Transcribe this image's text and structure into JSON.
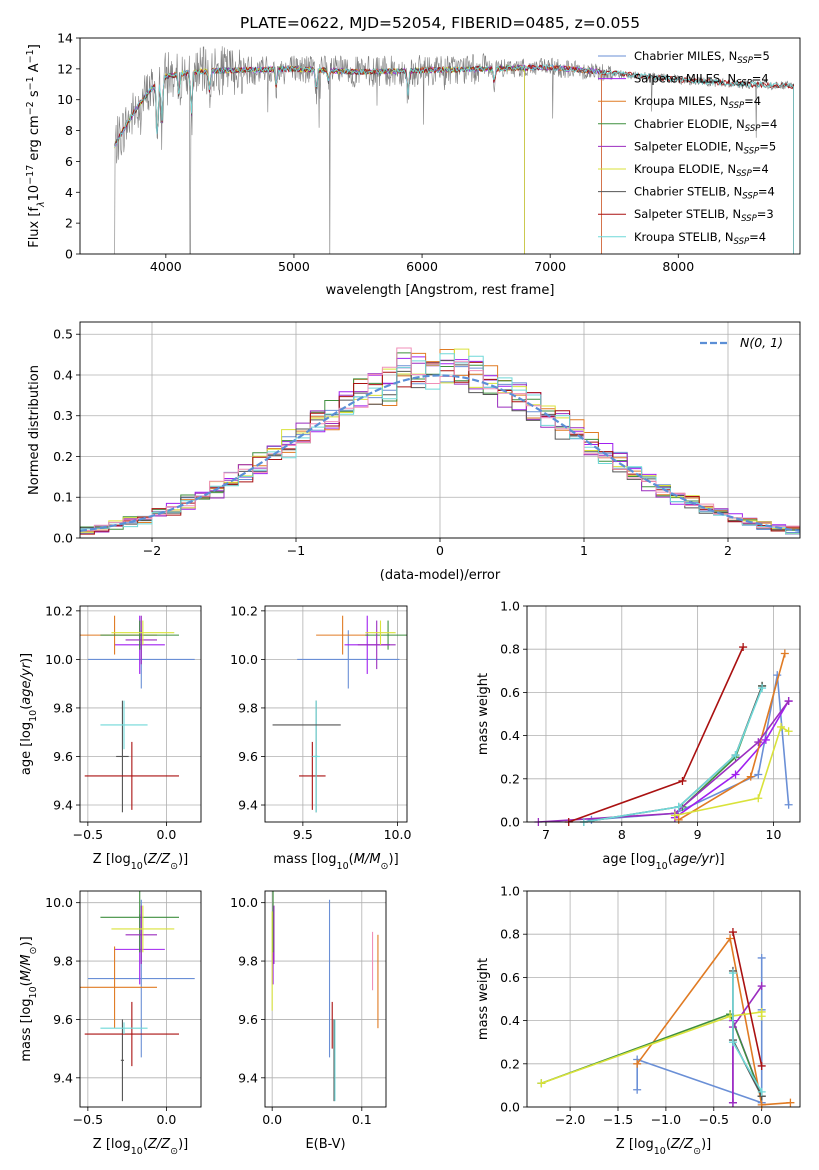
{
  "title": "PLATE=0622, MJD=52054, FIBERID=0485, z=0.055",
  "colors": {
    "Chabrier MILES": "#6a8fd6",
    "Salpeter MILES": "#a020f0",
    "Kroupa MILES": "#e07b24",
    "Chabrier ELODIE": "#3f8f3f",
    "Salpeter ELODIE": "#9b2dbf",
    "Kroupa ELODIE": "#d9e23a",
    "Chabrier STELIB": "#555555",
    "Salpeter STELIB": "#aa1111",
    "Kroupa STELIB": "#6fd8d8",
    "gaussian": "#5b8fd6",
    "hist_extra": "#f08fb8"
  },
  "chart_data": [
    {
      "id": "spectrum",
      "type": "line",
      "xlabel": "wavelength [Angstrom, rest frame]",
      "ylabel_parts": [
        "Flux [f",
        "λ",
        "10",
        "−17",
        " erg cm",
        "−2",
        " s",
        "−1",
        " A",
        "−1",
        "]"
      ],
      "xlim": [
        3330,
        8950
      ],
      "ylim": [
        0,
        14
      ],
      "xticks": [
        4000,
        5000,
        6000,
        7000,
        8000
      ],
      "yticks": [
        0,
        2,
        4,
        6,
        8,
        10,
        12,
        14
      ],
      "grid": false,
      "legend_position": "top-right",
      "legend": [
        {
          "label": "Chabrier MILES, N",
          "sub": "SSP",
          "suffix": "=5"
        },
        {
          "label": "Salpeter MILES, N",
          "sub": "SSP",
          "suffix": "=4"
        },
        {
          "label": "Kroupa MILES, N",
          "sub": "SSP",
          "suffix": "=4"
        },
        {
          "label": "Chabrier ELODIE, N",
          "sub": "SSP",
          "suffix": "=4"
        },
        {
          "label": "Salpeter ELODIE, N",
          "sub": "SSP",
          "suffix": "=5"
        },
        {
          "label": "Kroupa ELODIE, N",
          "sub": "SSP",
          "suffix": "=4"
        },
        {
          "label": "Chabrier STELIB, N",
          "sub": "SSP",
          "suffix": "=4"
        },
        {
          "label": "Salpeter STELIB, N",
          "sub": "SSP",
          "suffix": "=3"
        },
        {
          "label": "Kroupa STELIB, N",
          "sub": "SSP",
          "suffix": "=4"
        }
      ],
      "continuum": [
        [
          3600,
          7.0
        ],
        [
          3700,
          8.5
        ],
        [
          3800,
          9.8
        ],
        [
          3900,
          10.8
        ],
        [
          4000,
          11.5
        ],
        [
          4200,
          11.8
        ],
        [
          4500,
          11.9
        ],
        [
          5000,
          12.0
        ],
        [
          5500,
          11.8
        ],
        [
          6000,
          11.9
        ],
        [
          6500,
          12.0
        ],
        [
          7000,
          12.1
        ],
        [
          7400,
          11.8
        ],
        [
          8000,
          11.3
        ],
        [
          8500,
          11.0
        ],
        [
          8900,
          10.9
        ]
      ],
      "model_ends": {
        "Chabrier MILES": 7400,
        "Salpeter MILES": 7400,
        "Kroupa MILES": 7400,
        "Chabrier ELODIE": 6800,
        "Salpeter ELODIE": 6800,
        "Kroupa ELODIE": 6800,
        "Chabrier STELIB": 8900,
        "Salpeter STELIB": 8900,
        "Kroupa STELIB": 8900
      }
    },
    {
      "id": "residuals",
      "type": "histogram",
      "xlabel": "(data-model)/error",
      "ylabel": "Normed distribution",
      "xlim": [
        -2.5,
        2.5
      ],
      "ylim": [
        0,
        0.53
      ],
      "xticks": [
        -2,
        -1,
        0,
        1,
        2
      ],
      "yticks": [
        0.0,
        0.1,
        0.2,
        0.3,
        0.4,
        0.5
      ],
      "grid": true,
      "legend_position": "top-right",
      "gaussian_label": "N(0, 1)",
      "bin_width": 0.1
    },
    {
      "id": "age_vs_Z",
      "type": "errorbar",
      "xlabel": "Z [log10(Z/Z⊙)]",
      "ylabel": "age  [log10(age/yr)]",
      "xlim": [
        -0.55,
        0.22
      ],
      "ylim": [
        9.33,
        10.22
      ],
      "xticks": [
        -0.5,
        0.0
      ],
      "yticks": [
        9.4,
        9.6,
        9.8,
        10.0,
        10.2
      ],
      "grid": true,
      "points": [
        {
          "model": "Chabrier MILES",
          "x": -0.16,
          "xerr": 0.34,
          "y": 10.0,
          "yerr": 0.12
        },
        {
          "model": "Salpeter MILES",
          "x": -0.17,
          "xerr": 0.16,
          "y": 10.06,
          "yerr": 0.12
        },
        {
          "model": "Kroupa MILES",
          "x": -0.33,
          "xerr": 0.27,
          "y": 10.1,
          "yerr": 0.08
        },
        {
          "model": "Chabrier ELODIE",
          "x": -0.17,
          "xerr": 0.25,
          "y": 10.1,
          "yerr": 0.06
        },
        {
          "model": "Salpeter ELODIE",
          "x": -0.16,
          "xerr": 0.1,
          "y": 10.08,
          "yerr": 0.1
        },
        {
          "model": "Kroupa ELODIE",
          "x": -0.15,
          "xerr": 0.2,
          "y": 10.11,
          "yerr": 0.05
        },
        {
          "model": "Chabrier STELIB",
          "x": -0.28,
          "xerr": 0.04,
          "y": 9.6,
          "yerr": 0.23
        },
        {
          "model": "Salpeter STELIB",
          "x": -0.22,
          "xerr": 0.3,
          "y": 9.52,
          "yerr": 0.14
        },
        {
          "model": "Kroupa STELIB",
          "x": -0.27,
          "xerr": 0.15,
          "y": 9.73,
          "yerr": 0.1
        }
      ]
    },
    {
      "id": "age_vs_mass",
      "type": "errorbar",
      "xlabel": "mass [log10(M/M⊙)]",
      "ylabel": "",
      "xlim": [
        9.3,
        10.05
      ],
      "ylim": [
        9.33,
        10.22
      ],
      "xticks": [
        9.5,
        10.0
      ],
      "yticks": [
        9.4,
        9.6,
        9.8,
        10.0,
        10.2
      ],
      "grid": true,
      "points": [
        {
          "model": "Chabrier MILES",
          "x": 9.74,
          "xerr": 0.27,
          "y": 10.0,
          "yerr": 0.12
        },
        {
          "model": "Salpeter MILES",
          "x": 9.84,
          "xerr": 0.12,
          "y": 10.06,
          "yerr": 0.12
        },
        {
          "model": "Kroupa MILES",
          "x": 9.71,
          "xerr": 0.14,
          "y": 10.1,
          "yerr": 0.08
        },
        {
          "model": "Chabrier ELODIE",
          "x": 9.95,
          "xerr": 0.12,
          "y": 10.1,
          "yerr": 0.06
        },
        {
          "model": "Salpeter ELODIE",
          "x": 9.89,
          "xerr": 0.1,
          "y": 10.06,
          "yerr": 0.1
        },
        {
          "model": "Kroupa ELODIE",
          "x": 9.91,
          "xerr": 0.08,
          "y": 10.11,
          "yerr": 0.05
        },
        {
          "model": "Chabrier STELIB",
          "x": 9.57,
          "xerr": 0.01,
          "y": 9.6,
          "yerr": 0.23
        },
        {
          "model": "Salpeter STELIB",
          "x": 9.55,
          "xerr": 0.07,
          "y": 9.52,
          "yerr": 0.14
        },
        {
          "model": "Kroupa STELIB",
          "x": 9.57,
          "xerr": 0.02,
          "y": 9.6,
          "yerr": 0.23
        },
        {
          "model": "Chabrier STELIB",
          "x": 9.52,
          "xerr": 0.18,
          "y": 9.73,
          "yerr": 0.0
        }
      ]
    },
    {
      "id": "weight_vs_age",
      "type": "line",
      "xlabel": "age  [log10(age/yr)]",
      "ylabel": "mass weight",
      "xlim": [
        6.75,
        10.35
      ],
      "ylim": [
        0,
        1.0
      ],
      "xticks": [
        7,
        8,
        9,
        10
      ],
      "yticks": [
        0.0,
        0.2,
        0.4,
        0.6,
        0.8,
        1.0
      ],
      "grid": true,
      "series": [
        {
          "model": "Chabrier MILES",
          "x": [
            7.6,
            8.7,
            9.8,
            10.05,
            10.2
          ],
          "y": [
            0.01,
            0.04,
            0.22,
            0.68,
            0.08
          ]
        },
        {
          "model": "Salpeter MILES",
          "x": [
            8.7,
            9.5,
            9.9,
            10.2
          ],
          "y": [
            0.02,
            0.22,
            0.38,
            0.56
          ]
        },
        {
          "model": "Kroupa MILES",
          "x": [
            8.75,
            9.7,
            10.15
          ],
          "y": [
            0.01,
            0.21,
            0.78
          ]
        },
        {
          "model": "Chabrier ELODIE",
          "x": [
            8.8,
            9.5,
            9.85
          ],
          "y": [
            0.07,
            0.3,
            0.63
          ]
        },
        {
          "model": "Salpeter ELODIE",
          "x": [
            6.9,
            8.7,
            9.8,
            10.2
          ],
          "y": [
            0.0,
            0.04,
            0.37,
            0.56
          ]
        },
        {
          "model": "Kroupa ELODIE",
          "x": [
            8.7,
            9.8,
            10.1,
            10.2
          ],
          "y": [
            0.03,
            0.11,
            0.44,
            0.42
          ]
        },
        {
          "model": "Chabrier STELIB",
          "x": [
            7.5,
            8.75,
            9.5,
            9.85
          ],
          "y": [
            0.0,
            0.07,
            0.31,
            0.63
          ]
        },
        {
          "model": "Salpeter STELIB",
          "x": [
            7.3,
            8.8,
            9.6
          ],
          "y": [
            0.0,
            0.19,
            0.81
          ]
        },
        {
          "model": "Kroupa STELIB",
          "x": [
            7.5,
            8.75,
            9.5,
            9.85
          ],
          "y": [
            0.0,
            0.07,
            0.31,
            0.62
          ]
        }
      ]
    },
    {
      "id": "mass_vs_Z",
      "type": "errorbar",
      "xlabel": "Z [log10(Z/Z⊙)]",
      "ylabel": "mass [log10(M/M⊙)]",
      "xlim": [
        -0.55,
        0.22
      ],
      "ylim": [
        9.3,
        10.04
      ],
      "xticks": [
        -0.5,
        0.0
      ],
      "yticks": [
        9.4,
        9.6,
        9.8,
        10.0
      ],
      "grid": true,
      "points": [
        {
          "model": "Chabrier MILES",
          "x": -0.16,
          "xerr": 0.34,
          "y": 9.74,
          "yerr": 0.27
        },
        {
          "model": "Salpeter MILES",
          "x": -0.17,
          "xerr": 0.16,
          "y": 9.84,
          "yerr": 0.12
        },
        {
          "model": "Kroupa MILES",
          "x": -0.33,
          "xerr": 0.27,
          "y": 9.71,
          "yerr": 0.14
        },
        {
          "model": "Chabrier ELODIE",
          "x": -0.17,
          "xerr": 0.25,
          "y": 9.95,
          "yerr": 0.12
        },
        {
          "model": "Salpeter ELODIE",
          "x": -0.16,
          "xerr": 0.1,
          "y": 9.89,
          "yerr": 0.1
        },
        {
          "model": "Kroupa ELODIE",
          "x": -0.15,
          "xerr": 0.2,
          "y": 9.91,
          "yerr": 0.08
        },
        {
          "model": "Chabrier STELIB",
          "x": -0.28,
          "xerr": 0.01,
          "y": 9.46,
          "yerr": 0.14
        },
        {
          "model": "Salpeter STELIB",
          "x": -0.22,
          "xerr": 0.3,
          "y": 9.55,
          "yerr": 0.11
        },
        {
          "model": "Kroupa STELIB",
          "x": -0.27,
          "xerr": 0.15,
          "y": 9.57,
          "yerr": 0.02
        }
      ]
    },
    {
      "id": "mass_vs_ebv",
      "type": "errorbar",
      "xlabel": "E(B-V)",
      "ylabel": "",
      "xlim": [
        -0.008,
        0.127
      ],
      "ylim": [
        9.3,
        10.04
      ],
      "xticks": [
        0.0,
        0.1
      ],
      "yticks": [
        9.4,
        9.6,
        9.8,
        10.0
      ],
      "grid": true,
      "points": [
        {
          "model": "Chabrier MILES",
          "x": 0.064,
          "y": 9.74,
          "yerr": 0.27
        },
        {
          "model": "Salpeter MILES",
          "x": 0.001,
          "y": 9.84,
          "yerr": 0.12
        },
        {
          "model": "Kroupa MILES",
          "x": 0.118,
          "y": 9.73,
          "yerr": 0.16
        },
        {
          "model": "Chabrier ELODIE",
          "x": 0.001,
          "y": 9.95,
          "yerr": 0.12
        },
        {
          "model": "Salpeter ELODIE",
          "x": 0.002,
          "y": 9.89,
          "yerr": 0.1
        },
        {
          "model": "Kroupa ELODIE",
          "x": 0.0,
          "y": 9.8,
          "yerr": 0.17
        },
        {
          "model": "Chabrier STELIB",
          "x": 0.069,
          "y": 9.46,
          "yerr": 0.14
        },
        {
          "model": "Salpeter STELIB",
          "x": 0.067,
          "y": 9.58,
          "yerr": 0.08
        },
        {
          "model": "Kroupa STELIB",
          "x": 0.07,
          "y": 9.46,
          "yerr": 0.14
        },
        {
          "model": "hist_extra",
          "x": 0.112,
          "y": 9.8,
          "yerr": 0.1
        }
      ]
    },
    {
      "id": "weight_vs_Z",
      "type": "line",
      "xlabel": "Z [log10(Z/Z⊙)]",
      "ylabel": "mass weight",
      "xlim": [
        -2.45,
        0.4
      ],
      "ylim": [
        0,
        1.0
      ],
      "xticks": [
        -2.0,
        -1.5,
        -1.0,
        -0.5,
        0.0
      ],
      "yticks": [
        0.0,
        0.2,
        0.4,
        0.6,
        0.8,
        1.0
      ],
      "grid": true,
      "series": [
        {
          "model": "Chabrier MILES",
          "x": [
            -1.3,
            -1.3,
            0.0,
            0.0,
            0.0
          ],
          "y": [
            0.08,
            0.22,
            0.02,
            0.45,
            0.69
          ]
        },
        {
          "model": "Salpeter MILES",
          "x": [
            -0.3,
            -0.3,
            0.0
          ],
          "y": [
            0.02,
            0.4,
            0.05
          ]
        },
        {
          "model": "Kroupa MILES",
          "x": [
            -1.3,
            -0.33,
            0.0,
            0.3
          ],
          "y": [
            0.2,
            0.78,
            0.01,
            0.02
          ]
        },
        {
          "model": "Chabrier ELODIE",
          "x": [
            -2.3,
            -0.33,
            0.0
          ],
          "y": [
            0.11,
            0.43,
            0.05
          ]
        },
        {
          "model": "Salpeter ELODIE",
          "x": [
            -0.3,
            -0.3,
            0.0
          ],
          "y": [
            0.02,
            0.37,
            0.56
          ]
        },
        {
          "model": "Kroupa ELODIE",
          "x": [
            -2.3,
            -0.33,
            0.0,
            0.0
          ],
          "y": [
            0.11,
            0.42,
            0.44,
            0.42
          ]
        },
        {
          "model": "Chabrier STELIB",
          "x": [
            -0.3,
            -0.3,
            0.0
          ],
          "y": [
            0.63,
            0.31,
            0.05
          ]
        },
        {
          "model": "Salpeter STELIB",
          "x": [
            -0.3,
            0.0
          ],
          "y": [
            0.81,
            0.19
          ]
        },
        {
          "model": "Kroupa STELIB",
          "x": [
            -0.3,
            -0.3,
            0.0
          ],
          "y": [
            0.62,
            0.3,
            0.07
          ]
        }
      ]
    }
  ]
}
